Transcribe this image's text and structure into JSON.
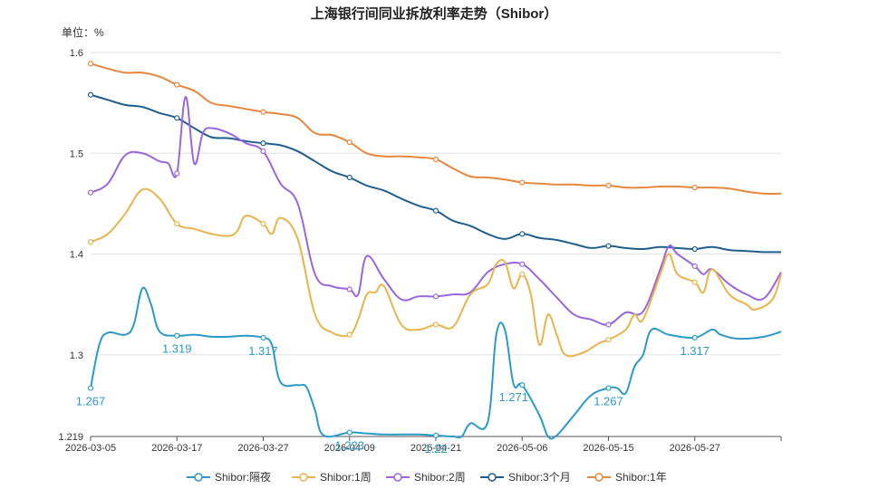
{
  "chart_data": {
    "type": "line",
    "title": "上海银行间同业拆放利率走势（Shibor）",
    "unit_label": "单位：%",
    "ylim": [
      1.219,
      1.6
    ],
    "y_ticks": [
      {
        "value": 1.219,
        "label": "1.219"
      },
      {
        "value": 1.3,
        "label": "1.3"
      },
      {
        "value": 1.4,
        "label": "1.4"
      },
      {
        "value": 1.5,
        "label": "1.5"
      },
      {
        "value": 1.6,
        "label": "1.6"
      }
    ],
    "x_range": [
      0,
      80
    ],
    "x_ticks": [
      {
        "index": 0,
        "label": "2026-03-05"
      },
      {
        "index": 10,
        "label": "2026-03-17"
      },
      {
        "index": 20,
        "label": "2026-03-27"
      },
      {
        "index": 30,
        "label": "2026-04-09"
      },
      {
        "index": 40,
        "label": "2026-04-21"
      },
      {
        "index": 50,
        "label": "2026-05-06"
      },
      {
        "index": 60,
        "label": "2026-05-15"
      },
      {
        "index": 70,
        "label": "2026-05-27"
      }
    ],
    "grid": "horizontal",
    "legend_position": "bottom-center",
    "series": [
      {
        "name": "Shibor:隔夜",
        "color": "#2b9ac8",
        "points": [
          [
            0,
            1.267
          ],
          [
            1,
            1.31
          ],
          [
            2,
            1.322
          ],
          [
            4,
            1.32
          ],
          [
            5,
            1.33
          ],
          [
            6,
            1.366
          ],
          [
            7,
            1.35
          ],
          [
            8,
            1.323
          ],
          [
            10,
            1.319
          ],
          [
            12,
            1.32
          ],
          [
            14,
            1.318
          ],
          [
            16,
            1.318
          ],
          [
            18,
            1.319
          ],
          [
            20,
            1.317
          ],
          [
            21,
            1.31
          ],
          [
            22,
            1.273
          ],
          [
            24,
            1.27
          ],
          [
            25,
            1.268
          ],
          [
            26,
            1.245
          ],
          [
            27,
            1.22
          ],
          [
            30,
            1.223
          ],
          [
            32,
            1.222
          ],
          [
            34,
            1.221
          ],
          [
            36,
            1.221
          ],
          [
            38,
            1.221
          ],
          [
            40,
            1.22
          ],
          [
            42,
            1.219
          ],
          [
            43,
            1.219
          ],
          [
            44,
            1.232
          ],
          [
            46,
            1.233
          ],
          [
            47,
            1.32
          ],
          [
            48,
            1.325
          ],
          [
            49,
            1.271
          ],
          [
            50,
            1.27
          ],
          [
            52,
            1.24
          ],
          [
            53,
            1.21
          ],
          [
            54,
            1.22
          ],
          [
            56,
            1.24
          ],
          [
            58,
            1.26
          ],
          [
            60,
            1.267
          ],
          [
            61,
            1.267
          ],
          [
            62,
            1.262
          ],
          [
            63,
            1.288
          ],
          [
            64,
            1.3
          ],
          [
            65,
            1.325
          ],
          [
            67,
            1.32
          ],
          [
            70,
            1.317
          ],
          [
            72,
            1.325
          ],
          [
            73,
            1.32
          ],
          [
            75,
            1.316
          ],
          [
            78,
            1.318
          ],
          [
            80,
            1.323
          ]
        ],
        "labels": [
          {
            "index": 0,
            "text": "1.267"
          },
          {
            "index": 10,
            "text": "1.319"
          },
          {
            "index": 20,
            "text": "1.317"
          },
          {
            "index": 30,
            "text": "1.223"
          },
          {
            "index": 40,
            "text": "1.22"
          },
          {
            "index": 49,
            "text": "1.271"
          },
          {
            "index": 60,
            "text": "1.267"
          },
          {
            "index": 70,
            "text": "1.317"
          }
        ]
      },
      {
        "name": "Shibor:1周",
        "color": "#e8b44c",
        "points": [
          [
            0,
            1.412
          ],
          [
            2,
            1.42
          ],
          [
            4,
            1.44
          ],
          [
            6,
            1.464
          ],
          [
            8,
            1.455
          ],
          [
            10,
            1.43
          ],
          [
            12,
            1.425
          ],
          [
            14,
            1.42
          ],
          [
            16,
            1.418
          ],
          [
            17,
            1.423
          ],
          [
            18,
            1.438
          ],
          [
            20,
            1.43
          ],
          [
            21,
            1.42
          ],
          [
            22,
            1.436
          ],
          [
            24,
            1.415
          ],
          [
            26,
            1.34
          ],
          [
            28,
            1.322
          ],
          [
            30,
            1.32
          ],
          [
            31,
            1.335
          ],
          [
            32,
            1.36
          ],
          [
            33,
            1.362
          ],
          [
            34,
            1.368
          ],
          [
            36,
            1.33
          ],
          [
            38,
            1.325
          ],
          [
            40,
            1.33
          ],
          [
            42,
            1.328
          ],
          [
            44,
            1.36
          ],
          [
            46,
            1.37
          ],
          [
            47,
            1.39
          ],
          [
            48,
            1.392
          ],
          [
            49,
            1.366
          ],
          [
            50,
            1.38
          ],
          [
            51,
            1.36
          ],
          [
            52,
            1.31
          ],
          [
            53,
            1.34
          ],
          [
            54,
            1.32
          ],
          [
            55,
            1.3
          ],
          [
            57,
            1.302
          ],
          [
            59,
            1.312
          ],
          [
            60,
            1.315
          ],
          [
            62,
            1.325
          ],
          [
            63,
            1.34
          ],
          [
            64,
            1.335
          ],
          [
            66,
            1.38
          ],
          [
            67,
            1.4
          ],
          [
            68,
            1.38
          ],
          [
            70,
            1.372
          ],
          [
            71,
            1.362
          ],
          [
            72,
            1.385
          ],
          [
            74,
            1.36
          ],
          [
            76,
            1.35
          ],
          [
            77,
            1.345
          ],
          [
            79,
            1.355
          ],
          [
            80,
            1.38
          ]
        ]
      },
      {
        "name": "Shibor:2周",
        "color": "#9966e0",
        "points": [
          [
            0,
            1.461
          ],
          [
            2,
            1.47
          ],
          [
            4,
            1.498
          ],
          [
            6,
            1.5
          ],
          [
            8,
            1.492
          ],
          [
            9,
            1.49
          ],
          [
            10,
            1.48
          ],
          [
            11,
            1.556
          ],
          [
            12,
            1.49
          ],
          [
            13,
            1.52
          ],
          [
            14,
            1.525
          ],
          [
            16,
            1.52
          ],
          [
            18,
            1.51
          ],
          [
            20,
            1.502
          ],
          [
            22,
            1.47
          ],
          [
            24,
            1.45
          ],
          [
            26,
            1.38
          ],
          [
            28,
            1.368
          ],
          [
            30,
            1.365
          ],
          [
            31,
            1.36
          ],
          [
            32,
            1.398
          ],
          [
            34,
            1.375
          ],
          [
            36,
            1.355
          ],
          [
            38,
            1.358
          ],
          [
            40,
            1.358
          ],
          [
            42,
            1.36
          ],
          [
            44,
            1.362
          ],
          [
            46,
            1.382
          ],
          [
            48,
            1.39
          ],
          [
            50,
            1.39
          ],
          [
            52,
            1.375
          ],
          [
            54,
            1.357
          ],
          [
            56,
            1.34
          ],
          [
            58,
            1.335
          ],
          [
            60,
            1.33
          ],
          [
            62,
            1.342
          ],
          [
            64,
            1.343
          ],
          [
            66,
            1.385
          ],
          [
            67,
            1.408
          ],
          [
            68,
            1.4
          ],
          [
            70,
            1.388
          ],
          [
            71,
            1.38
          ],
          [
            72,
            1.385
          ],
          [
            74,
            1.37
          ],
          [
            76,
            1.36
          ],
          [
            78,
            1.356
          ],
          [
            80,
            1.382
          ]
        ]
      },
      {
        "name": "Shibor:3个月",
        "color": "#1f5f8e",
        "points": [
          [
            0,
            1.558
          ],
          [
            2,
            1.553
          ],
          [
            4,
            1.548
          ],
          [
            6,
            1.546
          ],
          [
            8,
            1.54
          ],
          [
            10,
            1.535
          ],
          [
            12,
            1.525
          ],
          [
            14,
            1.516
          ],
          [
            16,
            1.515
          ],
          [
            18,
            1.512
          ],
          [
            20,
            1.51
          ],
          [
            22,
            1.508
          ],
          [
            24,
            1.502
          ],
          [
            26,
            1.492
          ],
          [
            28,
            1.482
          ],
          [
            30,
            1.476
          ],
          [
            32,
            1.468
          ],
          [
            34,
            1.463
          ],
          [
            36,
            1.455
          ],
          [
            38,
            1.448
          ],
          [
            40,
            1.443
          ],
          [
            42,
            1.433
          ],
          [
            44,
            1.428
          ],
          [
            46,
            1.42
          ],
          [
            48,
            1.415
          ],
          [
            50,
            1.42
          ],
          [
            52,
            1.416
          ],
          [
            54,
            1.414
          ],
          [
            56,
            1.41
          ],
          [
            58,
            1.406
          ],
          [
            60,
            1.408
          ],
          [
            62,
            1.406
          ],
          [
            64,
            1.405
          ],
          [
            66,
            1.407
          ],
          [
            68,
            1.406
          ],
          [
            70,
            1.405
          ],
          [
            72,
            1.407
          ],
          [
            74,
            1.404
          ],
          [
            76,
            1.403
          ],
          [
            78,
            1.402
          ],
          [
            80,
            1.402
          ]
        ]
      },
      {
        "name": "Shibor:1年",
        "color": "#e8873c",
        "points": [
          [
            0,
            1.589
          ],
          [
            2,
            1.584
          ],
          [
            4,
            1.58
          ],
          [
            6,
            1.58
          ],
          [
            8,
            1.576
          ],
          [
            10,
            1.568
          ],
          [
            12,
            1.562
          ],
          [
            14,
            1.55
          ],
          [
            16,
            1.547
          ],
          [
            18,
            1.544
          ],
          [
            20,
            1.541
          ],
          [
            22,
            1.539
          ],
          [
            24,
            1.535
          ],
          [
            26,
            1.52
          ],
          [
            28,
            1.518
          ],
          [
            30,
            1.511
          ],
          [
            32,
            1.5
          ],
          [
            34,
            1.497
          ],
          [
            36,
            1.497
          ],
          [
            38,
            1.496
          ],
          [
            40,
            1.494
          ],
          [
            42,
            1.485
          ],
          [
            44,
            1.477
          ],
          [
            46,
            1.476
          ],
          [
            48,
            1.474
          ],
          [
            50,
            1.471
          ],
          [
            52,
            1.47
          ],
          [
            54,
            1.469
          ],
          [
            56,
            1.469
          ],
          [
            58,
            1.468
          ],
          [
            60,
            1.468
          ],
          [
            62,
            1.466
          ],
          [
            64,
            1.466
          ],
          [
            66,
            1.467
          ],
          [
            68,
            1.467
          ],
          [
            70,
            1.466
          ],
          [
            72,
            1.466
          ],
          [
            74,
            1.465
          ],
          [
            76,
            1.462
          ],
          [
            78,
            1.46
          ],
          [
            80,
            1.46
          ]
        ]
      }
    ]
  }
}
